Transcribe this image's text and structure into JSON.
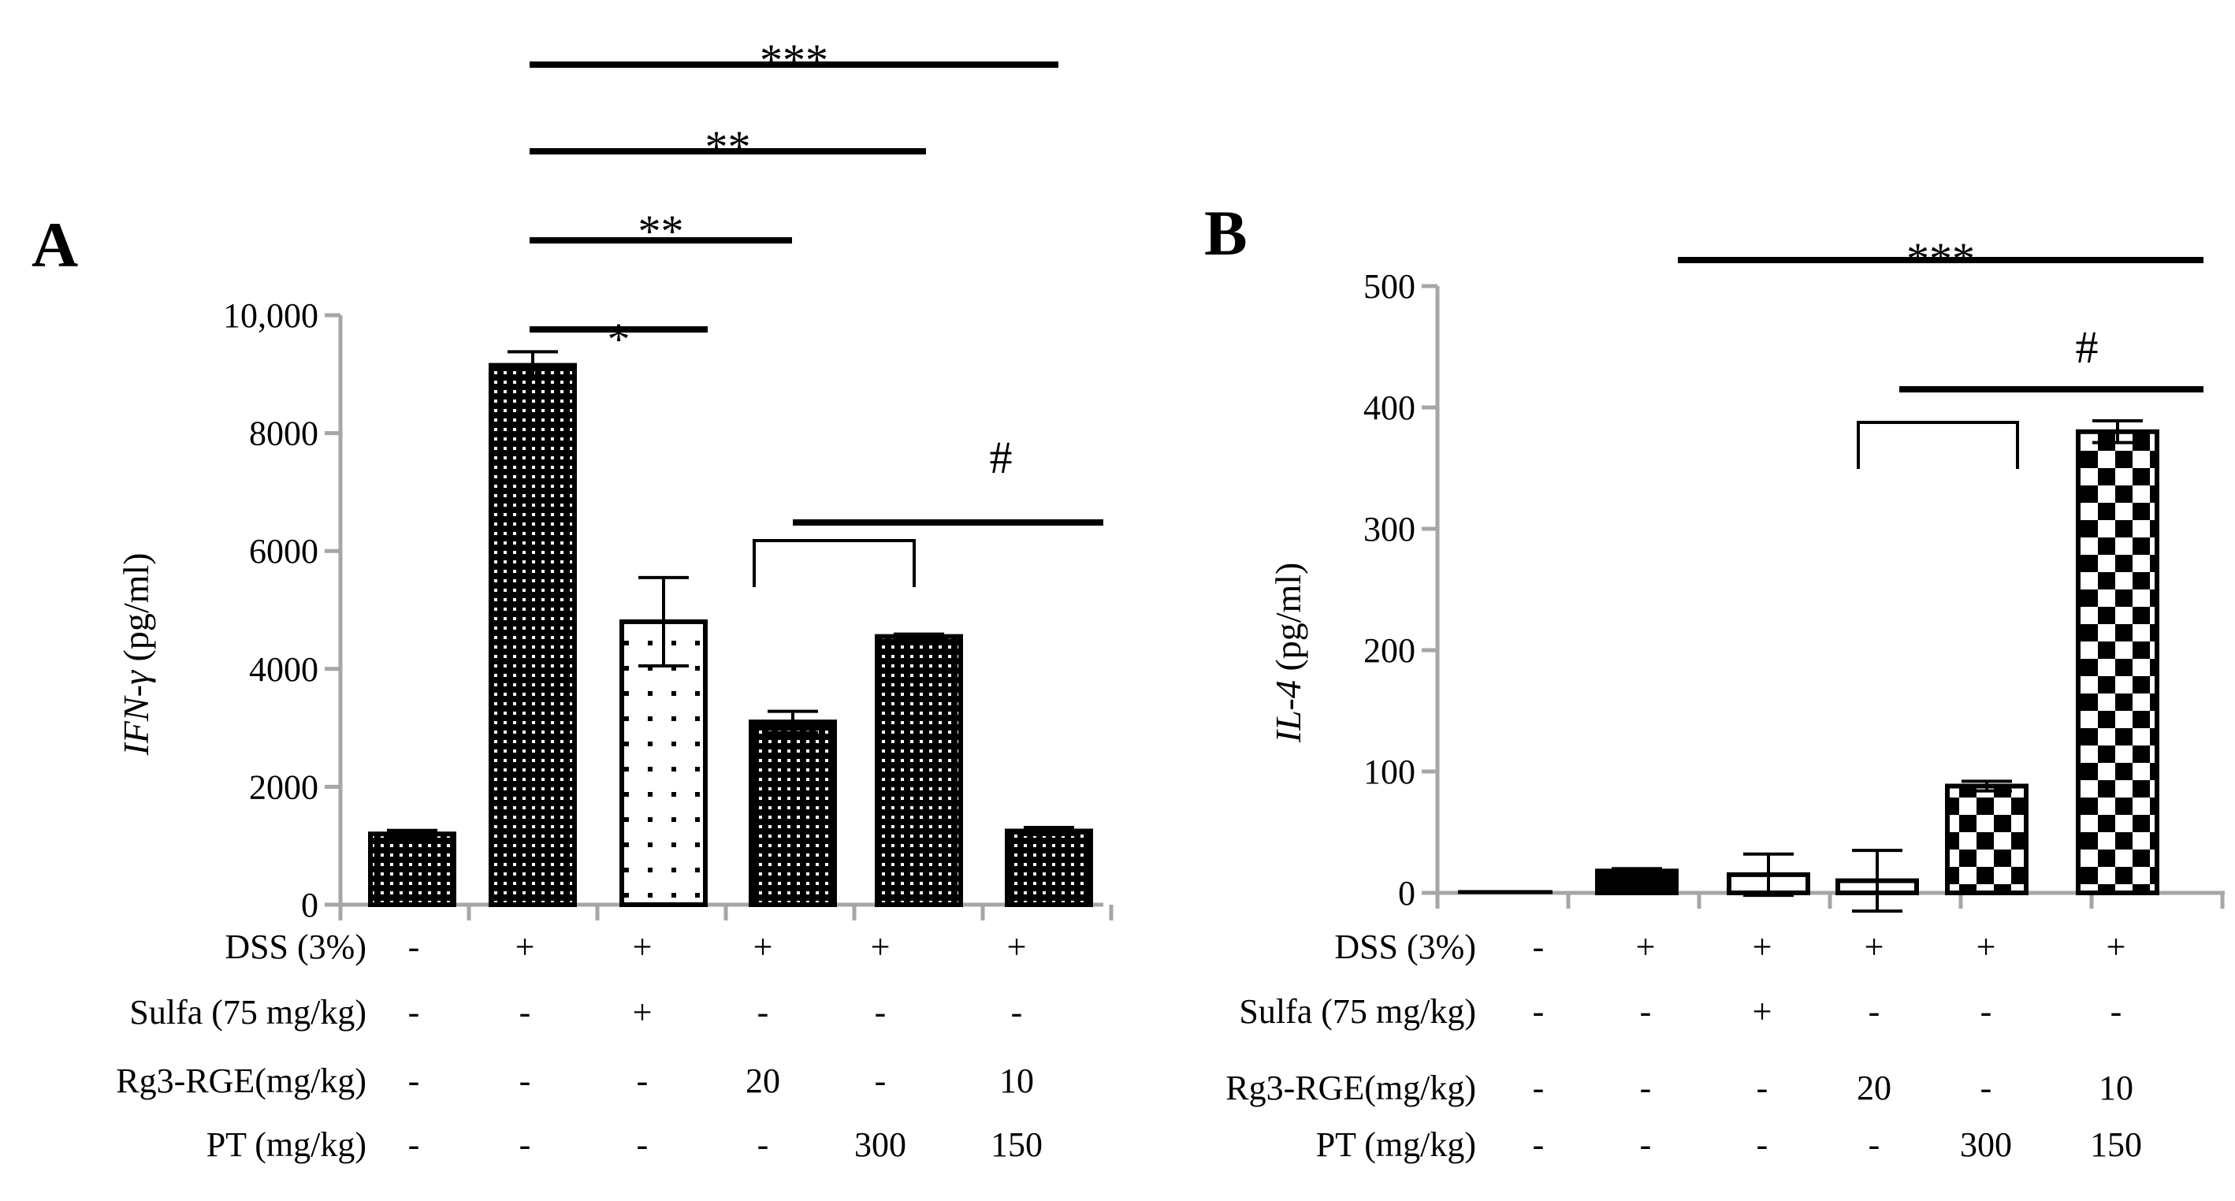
{
  "chart_data": [
    {
      "type": "bar",
      "panel": "A",
      "ylabel_italic": "IFN-γ",
      "ylabel_units": "(pg/ml)",
      "ylim": [
        0,
        10000
      ],
      "yticks": [
        "0",
        "2000",
        "4000",
        "6000",
        "8000",
        "10,000"
      ],
      "ytick_values": [
        0,
        2000,
        4000,
        6000,
        8000,
        10000
      ],
      "values": [
        1200,
        9150,
        4800,
        3100,
        4550,
        1250
      ],
      "errors": [
        60,
        230,
        750,
        180,
        40,
        60
      ],
      "patterns": [
        "grid",
        "grid",
        "dots",
        "grid",
        "grid",
        "grid"
      ],
      "treatments": {
        "labels": [
          "DSS (3%)",
          "Sulfa (75 mg/kg)",
          "Rg3-RGE(mg/kg)",
          "PT (mg/kg)"
        ],
        "rows": [
          [
            "-",
            "+",
            "+",
            "+",
            "+",
            "+"
          ],
          [
            "-",
            "-",
            "+",
            "-",
            "-",
            "-"
          ],
          [
            "-",
            "-",
            "-",
            "20",
            "-",
            "10"
          ],
          [
            "-",
            "-",
            "-",
            "-",
            "300",
            "150"
          ]
        ]
      },
      "significance": [
        {
          "from": 1,
          "to": 2,
          "label": "*"
        },
        {
          "from": 1,
          "to": 3,
          "label": "**"
        },
        {
          "from": 1,
          "to": 4,
          "label": "**"
        },
        {
          "from": 1,
          "to": 5,
          "label": "***"
        }
      ],
      "comparison": {
        "bracket_from": 3,
        "bracket_to": 4,
        "line_to": 5,
        "label": "#"
      }
    },
    {
      "type": "bar",
      "panel": "B",
      "ylabel_italic": "IL-4",
      "ylabel_units": "(pg/ml)",
      "ylim": [
        0,
        500
      ],
      "yticks": [
        "0",
        "100",
        "200",
        "300",
        "400",
        "500"
      ],
      "ytick_values": [
        0,
        100,
        200,
        300,
        400,
        500
      ],
      "values": [
        0,
        18,
        15,
        10,
        88,
        380
      ],
      "errors": [
        0,
        2,
        17,
        25,
        4,
        9
      ],
      "patterns": [
        "none",
        "solid",
        "open",
        "open",
        "checker",
        "checker"
      ],
      "treatments": {
        "labels": [
          "DSS (3%)",
          "Sulfa (75 mg/kg)",
          "Rg3-RGE(mg/kg)",
          "PT (mg/kg)"
        ],
        "rows": [
          [
            "-",
            "+",
            "+",
            "+",
            "+",
            "+"
          ],
          [
            "-",
            "-",
            "+",
            "-",
            "-",
            "-"
          ],
          [
            "-",
            "-",
            "-",
            "20",
            "-",
            "10"
          ],
          [
            "-",
            "-",
            "-",
            "-",
            "300",
            "150"
          ]
        ]
      },
      "significance": [
        {
          "from": 1,
          "to": 5,
          "label": "***"
        }
      ],
      "comparison": {
        "bracket_from": 3,
        "bracket_to": 4,
        "line_to": 5,
        "label": "#"
      }
    }
  ],
  "colors": {
    "axis": "#a6a6a6",
    "bar_edge": "#000000",
    "bar_fill": "#000000",
    "background": "#ffffff"
  }
}
